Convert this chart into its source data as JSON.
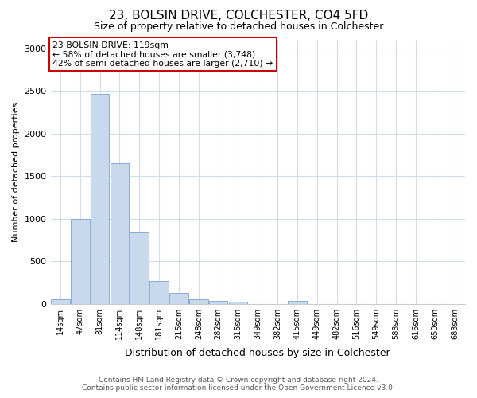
{
  "title": "23, BOLSIN DRIVE, COLCHESTER, CO4 5FD",
  "subtitle": "Size of property relative to detached houses in Colchester",
  "xlabel": "Distribution of detached houses by size in Colchester",
  "ylabel": "Number of detached properties",
  "bar_labels": [
    "14sqm",
    "47sqm",
    "81sqm",
    "114sqm",
    "148sqm",
    "181sqm",
    "215sqm",
    "248sqm",
    "282sqm",
    "315sqm",
    "349sqm",
    "382sqm",
    "415sqm",
    "449sqm",
    "482sqm",
    "516sqm",
    "549sqm",
    "583sqm",
    "616sqm",
    "650sqm",
    "683sqm"
  ],
  "bar_values": [
    55,
    1000,
    2460,
    1650,
    840,
    270,
    130,
    55,
    35,
    25,
    0,
    0,
    30,
    0,
    0,
    0,
    0,
    0,
    0,
    0,
    0
  ],
  "bar_color": "#c8d9ed",
  "bar_edge_color": "#8aadd4",
  "annotation_box_text": "23 BOLSIN DRIVE: 119sqm\n← 58% of detached houses are smaller (3,748)\n42% of semi-detached houses are larger (2,710) →",
  "annotation_box_color": "#ffffff",
  "annotation_box_edge_color": "#cc0000",
  "ylim": [
    0,
    3100
  ],
  "yticks": [
    0,
    500,
    1000,
    1500,
    2000,
    2500,
    3000
  ],
  "footer_line1": "Contains HM Land Registry data © Crown copyright and database right 2024.",
  "footer_line2": "Contains public sector information licensed under the Open Government Licence v3.0.",
  "background_color": "#ffffff",
  "plot_bg_color": "#ffffff",
  "grid_color": "#d0dce8",
  "title_fontsize": 11,
  "subtitle_fontsize": 9
}
